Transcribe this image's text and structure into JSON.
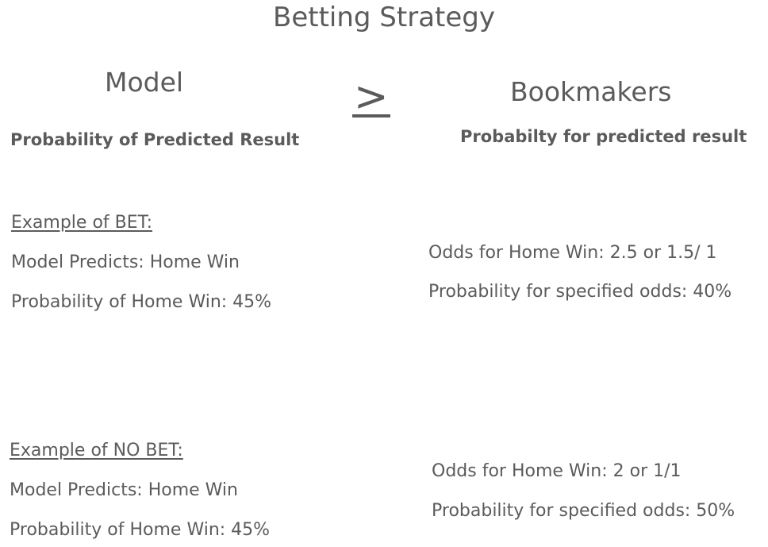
{
  "title": "Betting Strategy",
  "left_column": {
    "heading": "Model",
    "subheading": "Probability of Predicted Result"
  },
  "comparison_symbol": ">",
  "right_column": {
    "heading": "Bookmakers",
    "subheading": "Probabilty for predicted result"
  },
  "example_bet": {
    "heading": "Example of BET:",
    "model_predicts": "Model Predicts: Home Win",
    "model_probability": "Probability of Home Win: 45%",
    "odds": "Odds for Home Win: 2.5 or 1.5/ 1",
    "odds_probability": "Probability for specified odds: 40%"
  },
  "example_no_bet": {
    "heading": "Example of NO BET:",
    "model_predicts": "Model Predicts: Home Win",
    "model_probability": "Probability of Home Win: 45%",
    "odds": "Odds for Home Win: 2 or 1/1",
    "odds_probability": "Probability for specified odds: 50%"
  },
  "colors": {
    "text": "#5b5b5b",
    "background": "#ffffff"
  }
}
